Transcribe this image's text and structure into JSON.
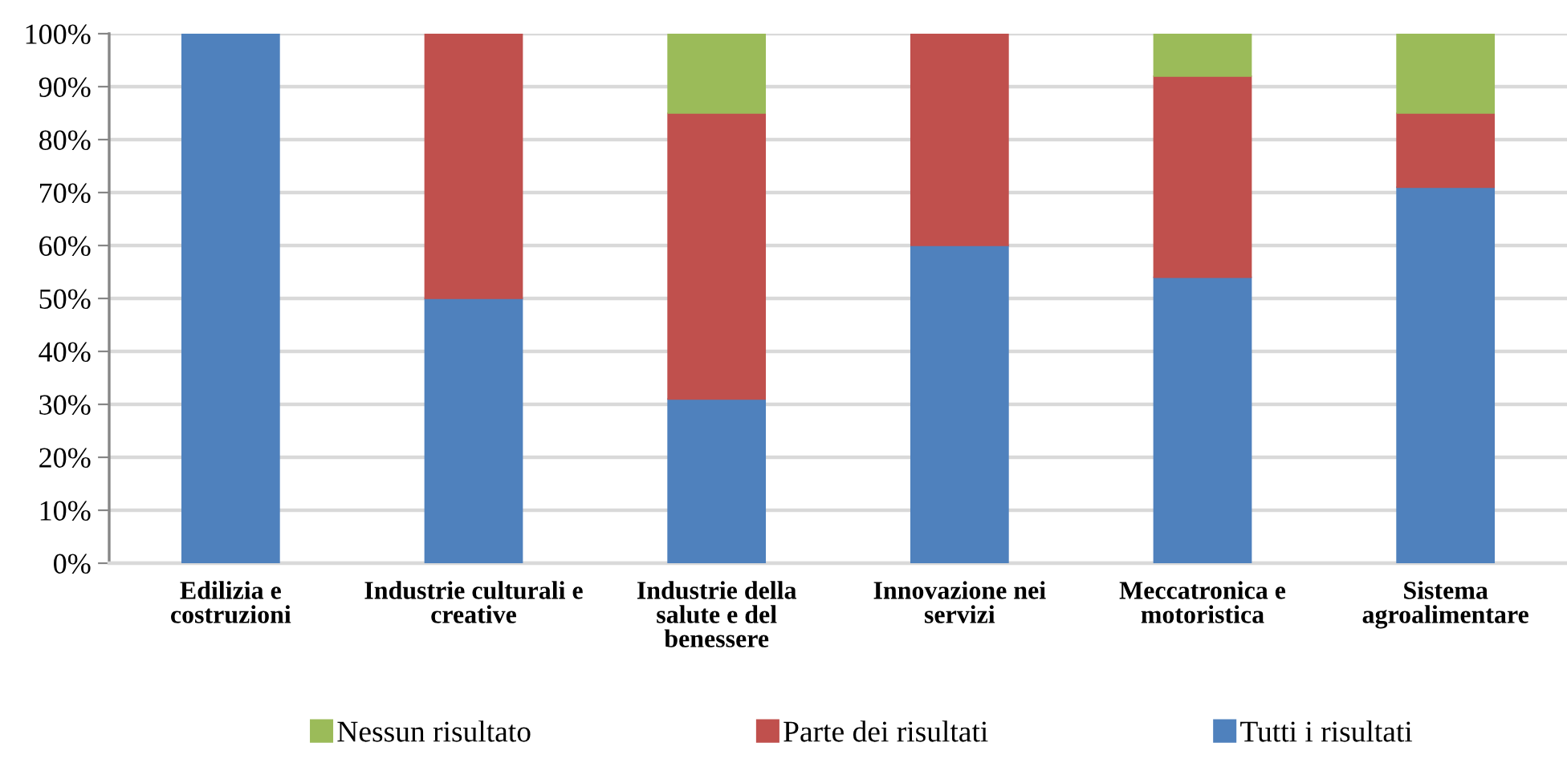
{
  "chart_data": {
    "type": "bar",
    "stacked": true,
    "categories": [
      "Edilizia e\ncostruzioni",
      "Industrie culturali e\ncreative",
      "Industrie della\nsalute e del\nbenessere",
      "Innovazione nei\nservizi",
      "Meccatronica e\nmotoristica",
      "Sistema\nagroalimentare"
    ],
    "series": [
      {
        "name": "Tutti i risultati",
        "color": "#4f81bd",
        "values": [
          100,
          50,
          31,
          60,
          54,
          71
        ]
      },
      {
        "name": "Parte dei risultati",
        "color": "#c0504d",
        "values": [
          null,
          50,
          54,
          40,
          38,
          14
        ]
      },
      {
        "name": "Nessun risultato",
        "color": "#9bbb59",
        "values": [
          null,
          null,
          15,
          null,
          8,
          15
        ]
      }
    ],
    "ylim": [
      0,
      100
    ],
    "yticks": [
      {
        "value": 0,
        "label": "0%"
      },
      {
        "value": 10,
        "label": "10%"
      },
      {
        "value": 20,
        "label": "20%"
      },
      {
        "value": 30,
        "label": "30%"
      },
      {
        "value": 40,
        "label": "40%"
      },
      {
        "value": 50,
        "label": "50%"
      },
      {
        "value": 60,
        "label": "60%"
      },
      {
        "value": 70,
        "label": "70%"
      },
      {
        "value": 80,
        "label": "80%"
      },
      {
        "value": 90,
        "label": "90%"
      },
      {
        "value": 100,
        "label": "100%"
      }
    ],
    "grid": "y",
    "legend": "bottom"
  }
}
